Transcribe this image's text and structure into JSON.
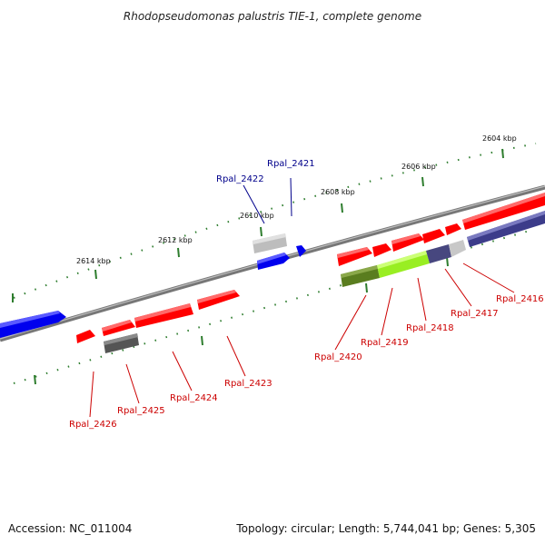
{
  "title": "Rhodopseudomonas palustris TIE-1, complete genome",
  "footer": {
    "accession": "Accession: NC_011004",
    "summary": "Topology: circular; Length: 5,744,041 bp; Genes: 5,305"
  },
  "colors": {
    "backbone": "#808080",
    "tick": "#2e7d2e",
    "forward_gene": "#ff0000",
    "reverse_gene": "#0000ff",
    "forward_label": "#cc0000",
    "reverse_label": "#00008b"
  },
  "scale_labels": [
    "2604 kbp",
    "2606 kbp",
    "2608 kbp",
    "2610 kbp",
    "2612 kbp",
    "2614 kbp"
  ],
  "gene_labels": {
    "top": [
      "Rpal_2421",
      "Rpal_2422"
    ],
    "bottom": [
      "Rpal_2416",
      "Rpal_2417",
      "Rpal_2418",
      "Rpal_2419",
      "Rpal_2420",
      "Rpal_2423",
      "Rpal_2424",
      "Rpal_2425",
      "Rpal_2426"
    ]
  }
}
